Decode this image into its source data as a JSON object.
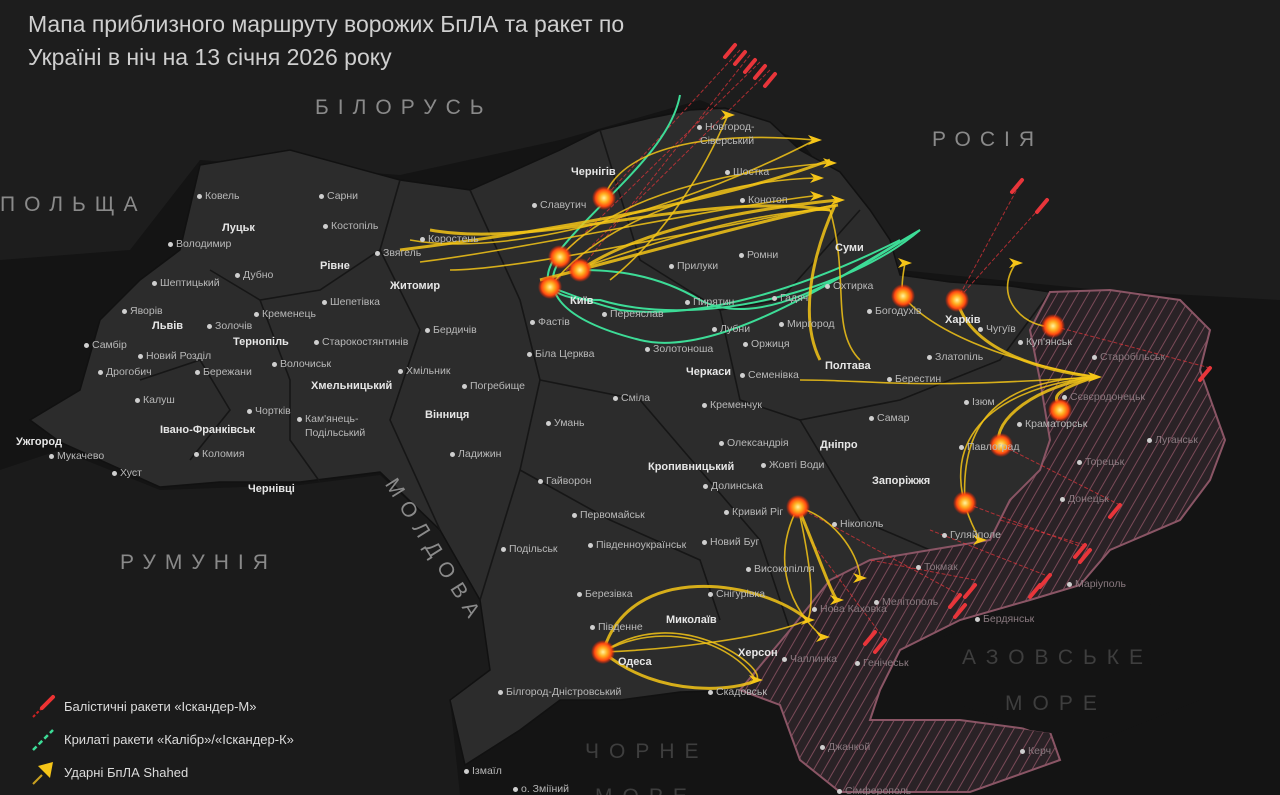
{
  "title": {
    "line1": "Мапа приблизного маршруту ворожих БпЛА та ракет по",
    "line2": "Україні в ніч на 13 січня 2026 року"
  },
  "countries": {
    "belarus": "БІЛОРУСЬ",
    "russia": "РОСІЯ",
    "poland": "ПОЛЬЩА",
    "romania": "РУМУНІЯ",
    "moldova": "МОЛДОВА"
  },
  "seas": {
    "azov_1": "АЗОВСЬКЕ",
    "azov_2": "МОРЕ",
    "black_1": "ЧОРНЕ",
    "black_2": "МОРЕ"
  },
  "colors": {
    "background": "#141414",
    "land": "#2e2e2e",
    "occupied_hatch": "#7a4a58",
    "shahed": "#f5c518",
    "cruise_missile": "#3ddc97",
    "ballistic_missile": "#e8353a",
    "explosion": "#ff6a00"
  },
  "legend": [
    {
      "label": "Балістичні ракети «Іскандер-М»",
      "icon": "ballistic-missile-icon"
    },
    {
      "label": "Крилаті ракети «Калібр»/«Іскандер-К»",
      "icon": "cruise-missile-icon"
    },
    {
      "label": "Ударні БпЛА Shahed",
      "icon": "shahed-drone-icon"
    }
  ],
  "cities": [
    {
      "name": "Ковель"
    },
    {
      "name": "Сарни"
    },
    {
      "name": "Луцьк",
      "center": true
    },
    {
      "name": "Костопіль"
    },
    {
      "name": "Володимир"
    },
    {
      "name": "Рівне",
      "center": true
    },
    {
      "name": "Звягель"
    },
    {
      "name": "Шептицький"
    },
    {
      "name": "Дубно"
    },
    {
      "name": "Житомир",
      "center": true
    },
    {
      "name": "Кременець"
    },
    {
      "name": "Шепетівка"
    },
    {
      "name": "Яворів"
    },
    {
      "name": "Львів",
      "center": true
    },
    {
      "name": "Золочів"
    },
    {
      "name": "Тернопіль",
      "center": true
    },
    {
      "name": "Старокостянтинів"
    },
    {
      "name": "Самбір"
    },
    {
      "name": "Новий Розділ"
    },
    {
      "name": "Волочиськ"
    },
    {
      "name": "Хмельницький",
      "center": true
    },
    {
      "name": "Дрогобич"
    },
    {
      "name": "Бережани"
    },
    {
      "name": "Калуш"
    },
    {
      "name": "Чортків"
    },
    {
      "name": "Івано-Франківськ",
      "center": true
    },
    {
      "name": "Кам'янець-"
    },
    {
      "name": "Подільський"
    },
    {
      "name": "Ужгород",
      "center": true
    },
    {
      "name": "Мукачево"
    },
    {
      "name": "Коломия"
    },
    {
      "name": "Хуст"
    },
    {
      "name": "Чернівці",
      "center": true
    },
    {
      "name": "Коростень"
    },
    {
      "name": "Бердичів"
    },
    {
      "name": "Хмільник"
    },
    {
      "name": "Погребище"
    },
    {
      "name": "Вінниця",
      "center": true
    },
    {
      "name": "Ладижин"
    },
    {
      "name": "Умань"
    },
    {
      "name": "Сміла"
    },
    {
      "name": "Гайворон"
    },
    {
      "name": "Первомайськ"
    },
    {
      "name": "Подільськ"
    },
    {
      "name": "Південноукраїнськ"
    },
    {
      "name": "Березівка"
    },
    {
      "name": "Південне"
    },
    {
      "name": "Миколаїв",
      "center": true
    },
    {
      "name": "Одеса",
      "center": true
    },
    {
      "name": "Білгород-Дністровський"
    },
    {
      "name": "Ізмаїл"
    },
    {
      "name": "о. Зміїний"
    },
    {
      "name": "Херсон",
      "center": true
    },
    {
      "name": "Скадовськ"
    },
    {
      "name": "Фастів"
    },
    {
      "name": "Біла Церква"
    },
    {
      "name": "Київ",
      "center": true
    },
    {
      "name": "Переяслав"
    },
    {
      "name": "Черкаси",
      "center": true
    },
    {
      "name": "Золотоноша"
    },
    {
      "name": "Кременчук"
    },
    {
      "name": "Олександрія"
    },
    {
      "name": "Кропивницький",
      "center": true
    },
    {
      "name": "Долинська"
    },
    {
      "name": "Жовті Води"
    },
    {
      "name": "Кривий Ріг"
    },
    {
      "name": "Новий Буг"
    },
    {
      "name": "Високопілля"
    },
    {
      "name": "Снігурівка"
    },
    {
      "name": "Славутич"
    },
    {
      "name": "Чернігів",
      "center": true
    },
    {
      "name": "Новгород-"
    },
    {
      "name": "Сіверський"
    },
    {
      "name": "Шостка"
    },
    {
      "name": "Конотоп"
    },
    {
      "name": "Прилуки"
    },
    {
      "name": "Ромни"
    },
    {
      "name": "Суми",
      "center": true
    },
    {
      "name": "Охтирка"
    },
    {
      "name": "Пирятин"
    },
    {
      "name": "Гадяч"
    },
    {
      "name": "Лубни"
    },
    {
      "name": "Миргород"
    },
    {
      "name": "Оржиця"
    },
    {
      "name": "Семенівка"
    },
    {
      "name": "Полтава",
      "center": true
    },
    {
      "name": "Богодухів"
    },
    {
      "name": "Харків",
      "center": true
    },
    {
      "name": "Чугуїв"
    },
    {
      "name": "Куп'янськ"
    },
    {
      "name": "Златопіль"
    },
    {
      "name": "Берестин"
    },
    {
      "name": "Ізюм"
    },
    {
      "name": "Самар"
    },
    {
      "name": "Краматорськ"
    },
    {
      "name": "Дніпро",
      "center": true
    },
    {
      "name": "Павлоград"
    },
    {
      "name": "Запоріжжя",
      "center": true
    },
    {
      "name": "Гуляйполе"
    },
    {
      "name": "Нікополь"
    },
    {
      "name": "Токмак"
    },
    {
      "name": "Мелітополь"
    },
    {
      "name": "Бердянськ"
    },
    {
      "name": "Маріуполь"
    },
    {
      "name": "Донецьк"
    },
    {
      "name": "Луганськ"
    },
    {
      "name": "Старобільськ"
    },
    {
      "name": "Сєвєродонецьк"
    },
    {
      "name": "Торецьк"
    },
    {
      "name": "Нова Каховка"
    },
    {
      "name": "Чаплинка"
    },
    {
      "name": "Генічеськ"
    },
    {
      "name": "Джанкой"
    },
    {
      "name": "Керч"
    },
    {
      "name": "Сімферополь"
    }
  ]
}
